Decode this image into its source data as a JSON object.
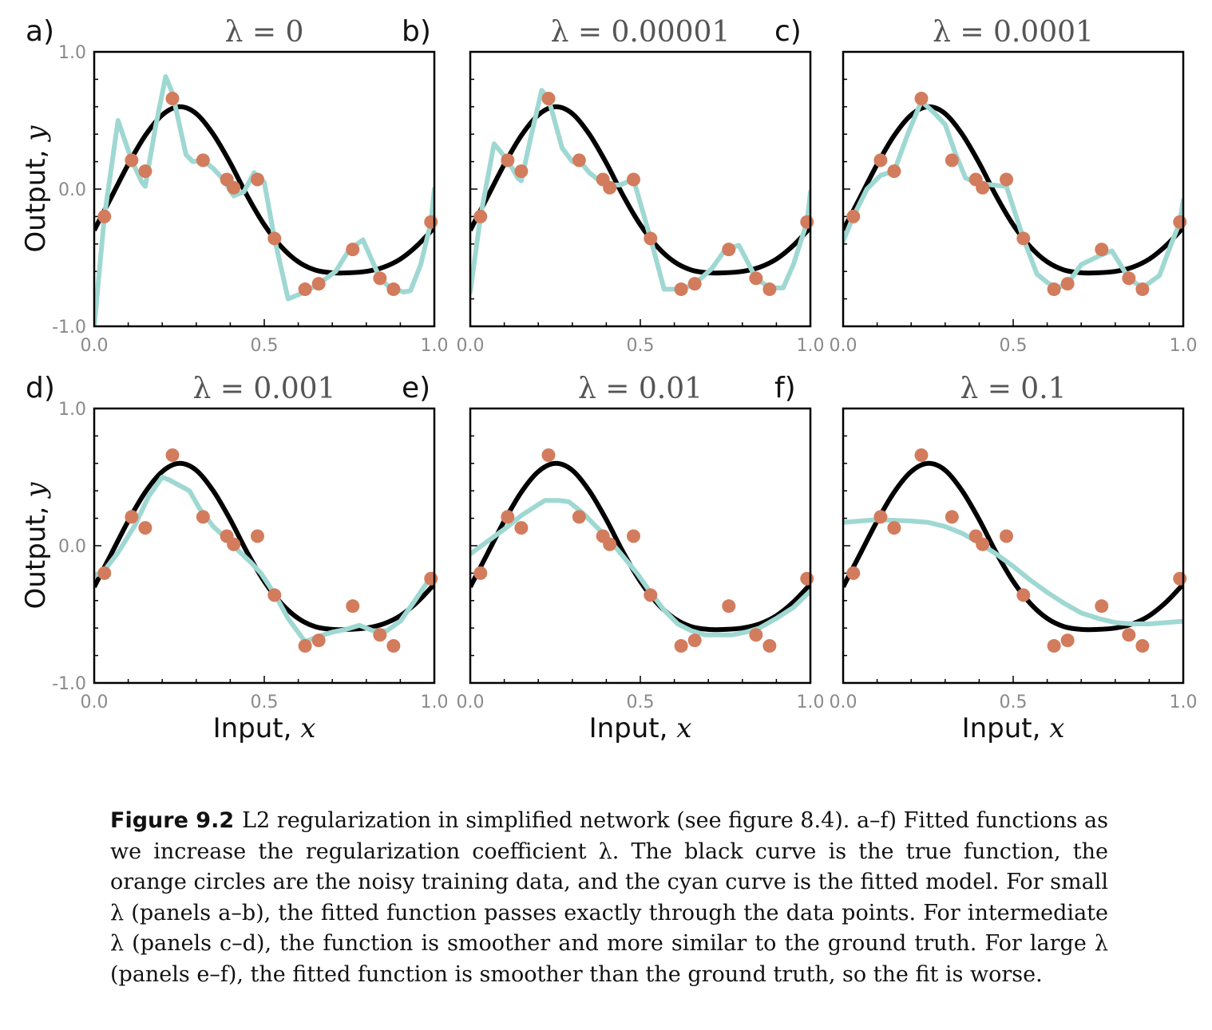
{
  "figure": {
    "y_axis_label_text": "Output, ",
    "y_axis_label_var": "y",
    "x_axis_label_text": "Input, ",
    "x_axis_label_var": "x",
    "colors": {
      "true_curve": "#000000",
      "fitted_curve": "#9fd8d2",
      "data_points": "#d27c5d"
    }
  },
  "caption": {
    "label": "Figure 9.2",
    "text": "L2 regularization in simplified network (see figure 8.4). a–f) Fitted functions as we increase the regularization coefficient λ. The black curve is the true function, the orange circles are the noisy training data, and the cyan curve is the fitted model. For small λ (panels a–b), the fitted function passes exactly through the data points. For intermediate λ (panels c–d), the function is smoother and more similar to the ground truth. For large λ (panels e–f), the fitted function is smoother than the ground truth, so the fit is worse."
  },
  "chart_data": {
    "type": "line",
    "xlim": [
      0.0,
      1.0
    ],
    "ylim": [
      -1.0,
      1.0
    ],
    "x_ticks": [
      "0.0",
      "0.5",
      "1.0"
    ],
    "y_ticks": [
      "1.0",
      "0.0",
      "-1.0"
    ],
    "true_function": {
      "x": [
        0.0,
        0.05,
        0.1,
        0.15,
        0.2,
        0.25,
        0.3,
        0.35,
        0.4,
        0.45,
        0.5,
        0.55,
        0.6,
        0.65,
        0.7,
        0.75,
        0.8,
        0.85,
        0.9,
        0.95,
        1.0
      ],
      "y": [
        -0.3,
        -0.06,
        0.18,
        0.39,
        0.54,
        0.6,
        0.55,
        0.4,
        0.19,
        -0.05,
        -0.26,
        -0.42,
        -0.53,
        -0.59,
        -0.61,
        -0.61,
        -0.6,
        -0.57,
        -0.51,
        -0.41,
        -0.28
      ]
    },
    "data_points": {
      "x": [
        0.03,
        0.11,
        0.15,
        0.23,
        0.32,
        0.39,
        0.41,
        0.48,
        0.53,
        0.62,
        0.66,
        0.76,
        0.84,
        0.88,
        0.99
      ],
      "y": [
        -0.2,
        0.21,
        0.13,
        0.66,
        0.21,
        0.07,
        0.01,
        0.07,
        -0.36,
        -0.73,
        -0.69,
        -0.44,
        -0.65,
        -0.73,
        -0.24
      ]
    },
    "panels": [
      {
        "letter": "a)",
        "lambda_label": "λ = 0",
        "show_y_axis": true,
        "show_x_label": false,
        "fitted": {
          "x": [
            0.0,
            0.03,
            0.07,
            0.11,
            0.14,
            0.15,
            0.18,
            0.21,
            0.23,
            0.27,
            0.29,
            0.32,
            0.35,
            0.38,
            0.41,
            0.44,
            0.47,
            0.5,
            0.53,
            0.57,
            0.62,
            0.66,
            0.71,
            0.75,
            0.79,
            0.84,
            0.87,
            0.91,
            0.93,
            0.96,
            0.99,
            1.0
          ],
          "y": [
            -1.0,
            -0.2,
            0.5,
            0.21,
            0.05,
            0.02,
            0.45,
            0.82,
            0.7,
            0.25,
            0.2,
            0.21,
            0.15,
            0.07,
            -0.05,
            -0.02,
            0.12,
            0.05,
            -0.36,
            -0.8,
            -0.75,
            -0.69,
            -0.6,
            -0.44,
            -0.37,
            -0.65,
            -0.72,
            -0.75,
            -0.74,
            -0.55,
            -0.24,
            0.0
          ]
        }
      },
      {
        "letter": "b)",
        "lambda_label": "λ = 0.00001",
        "show_y_axis": false,
        "show_x_label": false,
        "fitted": {
          "x": [
            0.0,
            0.03,
            0.07,
            0.11,
            0.14,
            0.15,
            0.18,
            0.21,
            0.23,
            0.27,
            0.3,
            0.32,
            0.35,
            0.38,
            0.41,
            0.44,
            0.48,
            0.53,
            0.57,
            0.62,
            0.66,
            0.71,
            0.75,
            0.79,
            0.84,
            0.88,
            0.92,
            0.95,
            0.99,
            1.0
          ],
          "y": [
            -0.75,
            -0.2,
            0.33,
            0.21,
            0.08,
            0.06,
            0.4,
            0.72,
            0.66,
            0.3,
            0.2,
            0.21,
            0.12,
            0.06,
            0.03,
            0.03,
            0.07,
            -0.36,
            -0.73,
            -0.73,
            -0.69,
            -0.58,
            -0.44,
            -0.41,
            -0.65,
            -0.72,
            -0.72,
            -0.55,
            -0.24,
            -0.02
          ]
        }
      },
      {
        "letter": "c)",
        "lambda_label": "λ = 0.0001",
        "show_y_axis": false,
        "show_x_label": false,
        "fitted": {
          "x": [
            0.0,
            0.03,
            0.07,
            0.11,
            0.15,
            0.19,
            0.23,
            0.27,
            0.3,
            0.33,
            0.36,
            0.4,
            0.44,
            0.48,
            0.53,
            0.57,
            0.6,
            0.63,
            0.66,
            0.7,
            0.75,
            0.79,
            0.84,
            0.88,
            0.93,
            0.96,
            0.99,
            1.0
          ],
          "y": [
            -0.38,
            -0.2,
            0.0,
            0.1,
            0.13,
            0.4,
            0.64,
            0.55,
            0.47,
            0.26,
            0.08,
            0.04,
            0.03,
            0.02,
            -0.36,
            -0.62,
            -0.68,
            -0.72,
            -0.69,
            -0.55,
            -0.49,
            -0.45,
            -0.65,
            -0.72,
            -0.63,
            -0.43,
            -0.24,
            -0.08
          ]
        }
      },
      {
        "letter": "d)",
        "lambda_label": "λ = 0.001",
        "show_y_axis": true,
        "show_x_label": true,
        "fitted": {
          "x": [
            0.0,
            0.03,
            0.07,
            0.12,
            0.16,
            0.2,
            0.22,
            0.25,
            0.28,
            0.31,
            0.35,
            0.39,
            0.43,
            0.46,
            0.49,
            0.53,
            0.57,
            0.62,
            0.66,
            0.7,
            0.74,
            0.78,
            0.82,
            0.86,
            0.9,
            0.94,
            0.97,
            1.0
          ],
          "y": [
            -0.22,
            -0.18,
            -0.05,
            0.15,
            0.36,
            0.5,
            0.48,
            0.44,
            0.4,
            0.27,
            0.14,
            0.05,
            -0.05,
            -0.12,
            -0.2,
            -0.35,
            -0.53,
            -0.7,
            -0.66,
            -0.63,
            -0.61,
            -0.58,
            -0.62,
            -0.62,
            -0.55,
            -0.41,
            -0.3,
            -0.2
          ]
        }
      },
      {
        "letter": "e)",
        "lambda_label": "λ = 0.01",
        "show_y_axis": false,
        "show_x_label": true,
        "fitted": {
          "x": [
            0.0,
            0.05,
            0.1,
            0.15,
            0.2,
            0.22,
            0.26,
            0.29,
            0.33,
            0.37,
            0.41,
            0.45,
            0.49,
            0.53,
            0.57,
            0.61,
            0.65,
            0.69,
            0.73,
            0.77,
            0.81,
            0.85,
            0.9,
            0.95,
            1.0
          ],
          "y": [
            -0.06,
            0.03,
            0.12,
            0.22,
            0.3,
            0.33,
            0.33,
            0.32,
            0.24,
            0.14,
            0.04,
            -0.08,
            -0.2,
            -0.34,
            -0.47,
            -0.57,
            -0.62,
            -0.65,
            -0.65,
            -0.65,
            -0.63,
            -0.6,
            -0.53,
            -0.45,
            -0.33
          ]
        }
      },
      {
        "letter": "f)",
        "lambda_label": "λ = 0.1",
        "show_y_axis": false,
        "show_x_label": true,
        "fitted": {
          "x": [
            0.0,
            0.1,
            0.2,
            0.25,
            0.3,
            0.35,
            0.4,
            0.45,
            0.5,
            0.55,
            0.6,
            0.65,
            0.7,
            0.75,
            0.8,
            0.85,
            0.9,
            0.95,
            1.0
          ],
          "y": [
            0.17,
            0.19,
            0.18,
            0.17,
            0.14,
            0.09,
            0.02,
            -0.06,
            -0.15,
            -0.25,
            -0.34,
            -0.42,
            -0.49,
            -0.53,
            -0.56,
            -0.57,
            -0.57,
            -0.56,
            -0.55
          ]
        }
      }
    ]
  }
}
